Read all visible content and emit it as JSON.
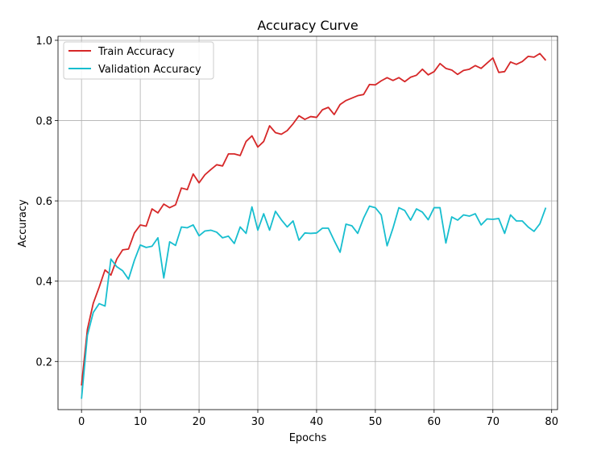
{
  "colors": {
    "train": "#d62728",
    "validation": "#17becf",
    "grid": "#b0b0b0",
    "axis": "#000000"
  },
  "chart_data": {
    "type": "line",
    "title": "Accuracy Curve",
    "xlabel": "Epochs",
    "ylabel": "Accuracy",
    "xlim": [
      -4,
      81
    ],
    "ylim": [
      0.08,
      1.01
    ],
    "xticks": [
      0,
      10,
      20,
      30,
      40,
      50,
      60,
      70,
      80
    ],
    "yticks": [
      0.2,
      0.4,
      0.6,
      0.8,
      1.0
    ],
    "xtick_labels": [
      "0",
      "10",
      "20",
      "30",
      "40",
      "50",
      "60",
      "70",
      "80"
    ],
    "ytick_labels": [
      "0.2",
      "0.4",
      "0.6",
      "0.8",
      "1.0"
    ],
    "grid": true,
    "legend_position": "top-left",
    "x": [
      0,
      1,
      2,
      3,
      4,
      5,
      6,
      7,
      8,
      9,
      10,
      11,
      12,
      13,
      14,
      15,
      16,
      17,
      18,
      19,
      20,
      21,
      22,
      23,
      24,
      25,
      26,
      27,
      28,
      29,
      30,
      31,
      32,
      33,
      34,
      35,
      36,
      37,
      38,
      39,
      40,
      41,
      42,
      43,
      44,
      45,
      46,
      47,
      48,
      49,
      50,
      51,
      52,
      53,
      54,
      55,
      56,
      57,
      58,
      59,
      60,
      61,
      62,
      63,
      64,
      65,
      66,
      67,
      68,
      69,
      70,
      71,
      72,
      73,
      74,
      75,
      76,
      77,
      78,
      79
    ],
    "series": [
      {
        "name": "Train Accuracy",
        "values": [
          0.14,
          0.28,
          0.345,
          0.385,
          0.428,
          0.415,
          0.455,
          0.478,
          0.48,
          0.52,
          0.54,
          0.537,
          0.58,
          0.57,
          0.592,
          0.583,
          0.59,
          0.632,
          0.628,
          0.667,
          0.645,
          0.665,
          0.678,
          0.69,
          0.687,
          0.717,
          0.717,
          0.713,
          0.748,
          0.762,
          0.734,
          0.748,
          0.787,
          0.77,
          0.766,
          0.775,
          0.792,
          0.812,
          0.803,
          0.81,
          0.808,
          0.827,
          0.833,
          0.815,
          0.84,
          0.85,
          0.856,
          0.862,
          0.865,
          0.89,
          0.889,
          0.899,
          0.907,
          0.9,
          0.907,
          0.897,
          0.908,
          0.913,
          0.928,
          0.914,
          0.922,
          0.942,
          0.93,
          0.926,
          0.915,
          0.925,
          0.928,
          0.937,
          0.93,
          0.943,
          0.956,
          0.92,
          0.922,
          0.946,
          0.94,
          0.947,
          0.96,
          0.958,
          0.967,
          0.95
        ]
      },
      {
        "name": "Validation Accuracy",
        "values": [
          0.107,
          0.265,
          0.322,
          0.344,
          0.338,
          0.455,
          0.436,
          0.426,
          0.405,
          0.452,
          0.49,
          0.484,
          0.487,
          0.508,
          0.408,
          0.498,
          0.489,
          0.535,
          0.533,
          0.54,
          0.513,
          0.525,
          0.527,
          0.522,
          0.508,
          0.512,
          0.494,
          0.535,
          0.519,
          0.585,
          0.527,
          0.568,
          0.527,
          0.574,
          0.553,
          0.535,
          0.55,
          0.502,
          0.52,
          0.519,
          0.52,
          0.532,
          0.532,
          0.501,
          0.472,
          0.542,
          0.538,
          0.519,
          0.557,
          0.587,
          0.583,
          0.565,
          0.488,
          0.532,
          0.583,
          0.576,
          0.552,
          0.58,
          0.572,
          0.553,
          0.583,
          0.583,
          0.495,
          0.56,
          0.552,
          0.565,
          0.562,
          0.568,
          0.54,
          0.555,
          0.554,
          0.556,
          0.519,
          0.565,
          0.55,
          0.55,
          0.535,
          0.524,
          0.543,
          0.583
        ]
      }
    ]
  }
}
